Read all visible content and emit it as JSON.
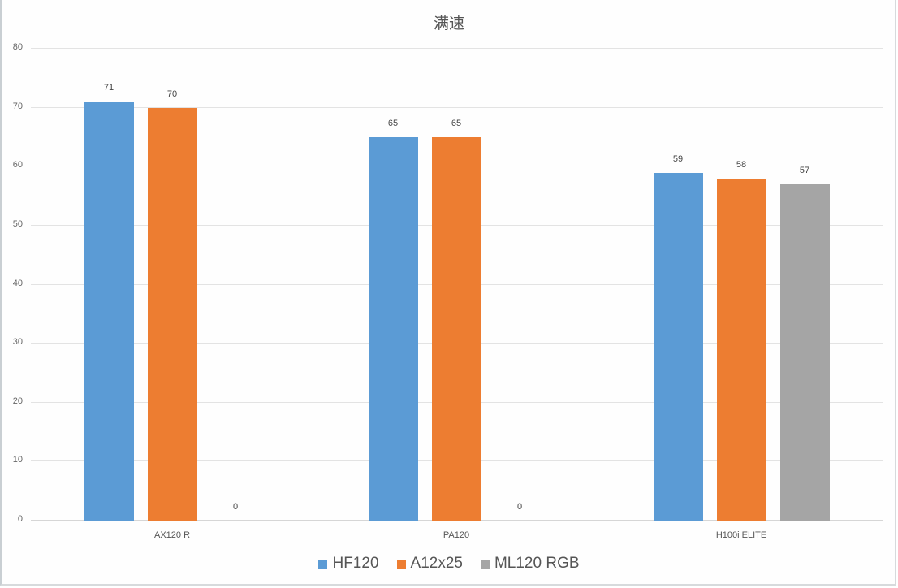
{
  "chart_data": {
    "type": "bar",
    "title": "满速",
    "xlabel": "",
    "ylabel": "",
    "ylim": [
      0,
      80
    ],
    "yticks": [
      0,
      10,
      20,
      30,
      40,
      50,
      60,
      70,
      80
    ],
    "grid": true,
    "legend_position": "bottom",
    "categories": [
      "AX120 R",
      "PA120",
      "H100i ELITE"
    ],
    "series": [
      {
        "name": "HF120",
        "color": "#5b9bd5",
        "values": [
          71,
          65,
          59
        ]
      },
      {
        "name": "A12x25",
        "color": "#ed7d31",
        "values": [
          70,
          65,
          58
        ]
      },
      {
        "name": "ML120 RGB",
        "color": "#a5a5a5",
        "values": [
          0,
          0,
          57
        ]
      }
    ],
    "data_labels": true
  }
}
